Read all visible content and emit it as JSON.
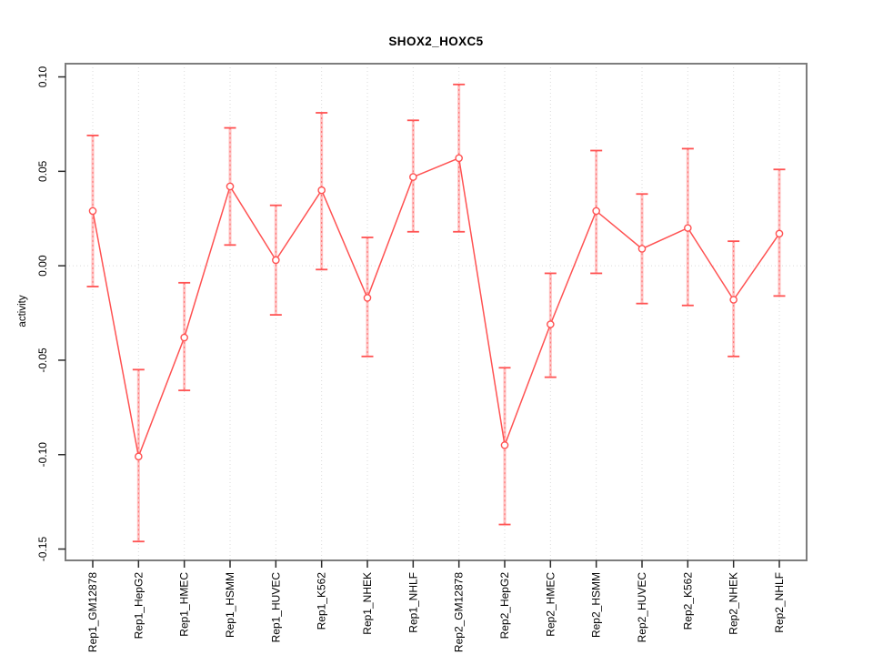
{
  "colors": {
    "line": "#ff5252",
    "error_stem": "#ffc2c2",
    "error_stem_dash": "#ff6b6b",
    "grid": "#dadada",
    "frame": "#7d7d7d",
    "tick": "#2b2b2b",
    "text": "#000000",
    "background": "#ffffff"
  },
  "chart_data": {
    "type": "line",
    "title": "SHOX2_HOXC5",
    "xlabel": "",
    "ylabel": "activity",
    "legend": null,
    "grid": "dotted vertical gridline at each category; dotted horizontal line at y=0",
    "marker": "open-circle",
    "ylim": [
      -0.156,
      0.107
    ],
    "y_ticks": [
      0.1,
      0.05,
      0.0,
      -0.05,
      -0.1,
      -0.15
    ],
    "y_tick_labels": [
      "0.10",
      "0.05",
      "0.00",
      "-0.05",
      "-0.10",
      "-0.15"
    ],
    "categories": [
      "Rep1_GM12878",
      "Rep1_HepG2",
      "Rep1_HMEC",
      "Rep1_HSMM",
      "Rep1_HUVEC",
      "Rep1_K562",
      "Rep1_NHEK",
      "Rep1_NHLF",
      "Rep2_GM12878",
      "Rep2_HepG2",
      "Rep2_HMEC",
      "Rep2_HSMM",
      "Rep2_HUVEC",
      "Rep2_K562",
      "Rep2_NHEK",
      "Rep2_NHLF"
    ],
    "series": [
      {
        "name": "activity",
        "values": [
          0.029,
          -0.101,
          -0.038,
          0.042,
          0.003,
          0.04,
          -0.017,
          0.047,
          0.057,
          -0.095,
          -0.031,
          0.029,
          0.009,
          0.02,
          -0.018,
          0.017
        ],
        "upper": [
          0.069,
          -0.055,
          -0.009,
          0.073,
          0.032,
          0.081,
          0.015,
          0.077,
          0.096,
          -0.054,
          -0.004,
          0.061,
          0.038,
          0.062,
          0.013,
          0.051
        ],
        "lower": [
          -0.011,
          -0.146,
          -0.066,
          0.011,
          -0.026,
          -0.002,
          -0.048,
          0.018,
          0.018,
          -0.137,
          -0.059,
          -0.004,
          -0.02,
          -0.021,
          -0.048,
          -0.016
        ]
      }
    ]
  }
}
